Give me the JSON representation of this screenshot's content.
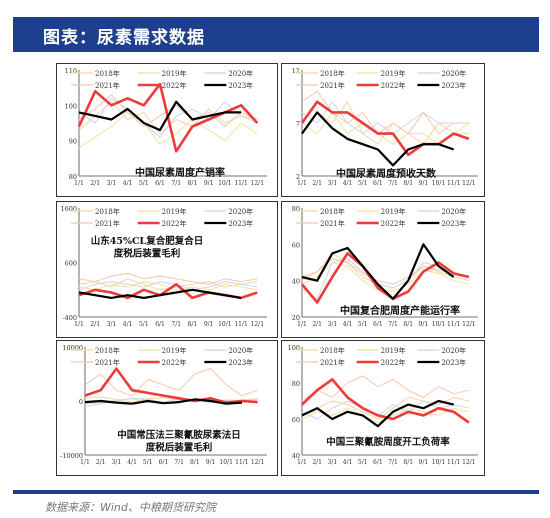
{
  "header": {
    "title": "图表：尿素需求数据"
  },
  "footer": {
    "source": "数据来源：Wind、中粮期货研究院"
  },
  "series_styles": [
    {
      "name": "2018年",
      "color": "#f7d5a3",
      "width": 1
    },
    {
      "name": "2019年",
      "color": "#f2e1a0",
      "width": 1
    },
    {
      "name": "2020年",
      "color": "#c7d7ec",
      "width": 1
    },
    {
      "name": "2021年",
      "color": "#f7c6b0",
      "width": 1
    },
    {
      "name": "2022年",
      "color": "#ef3a3a",
      "width": 2.6
    },
    {
      "name": "2023年",
      "color": "#000000",
      "width": 2.2
    }
  ],
  "chart_data": [
    {
      "type": "line",
      "title": "中国尿素周度产销率",
      "x": [
        "1/1",
        "2/1",
        "3/1",
        "4/1",
        "5/1",
        "6/1",
        "7/1",
        "8/1",
        "9/1",
        "10/1",
        "11/1",
        "12/1"
      ],
      "yticks": [
        "110",
        "100",
        "90",
        "80"
      ],
      "ylim": [
        80,
        110
      ],
      "series": [
        {
          "name": "2018年",
          "values": [
            93,
            97,
            101,
            96,
            98,
            92,
            96,
            94,
            99,
            95,
            97,
            96
          ]
        },
        {
          "name": "2019年",
          "values": [
            88,
            91,
            94,
            98,
            95,
            89,
            92,
            96,
            93,
            90,
            95,
            92
          ]
        },
        {
          "name": "2020年",
          "values": [
            98,
            95,
            102,
            99,
            95,
            91,
            97,
            99,
            96,
            101,
            97,
            95
          ]
        },
        {
          "name": "2021年",
          "values": [
            96,
            99,
            103,
            98,
            94,
            97,
            100,
            96,
            98,
            94,
            98,
            96
          ]
        },
        {
          "name": "2022年",
          "values": [
            94,
            104,
            100,
            102,
            100,
            106,
            87,
            94,
            96,
            98,
            100,
            95
          ]
        },
        {
          "name": "2023年",
          "values": [
            98,
            97,
            96,
            99,
            95,
            93,
            101,
            96,
            97,
            98,
            98,
            null
          ]
        }
      ]
    },
    {
      "type": "line",
      "title": "中国尿素周度预收天数",
      "x": [
        "1/1",
        "2/1",
        "3/1",
        "4/1",
        "5/1",
        "6/1",
        "7/1",
        "8/1",
        "9/1",
        "10/1",
        "11/1",
        "12/1"
      ],
      "yticks": [
        "12",
        "7",
        "2"
      ],
      "ylim": [
        2,
        12
      ],
      "series": [
        {
          "name": "2018年",
          "values": [
            6,
            8,
            7,
            9,
            6,
            5,
            7,
            6,
            5,
            7,
            6,
            6
          ]
        },
        {
          "name": "2019年",
          "values": [
            7,
            6,
            8,
            6,
            7,
            6,
            5,
            6,
            6,
            5,
            6,
            7
          ]
        },
        {
          "name": "2020年",
          "values": [
            8,
            7,
            9,
            7,
            6,
            7,
            6,
            7,
            8,
            7,
            7,
            7
          ]
        },
        {
          "name": "2021年",
          "values": [
            9,
            10,
            8,
            7,
            8,
            6,
            7,
            6,
            8,
            6,
            7,
            7
          ]
        },
        {
          "name": "2022年",
          "values": [
            7,
            9,
            8,
            8,
            7,
            6,
            6,
            4,
            5,
            5,
            6,
            5.5
          ]
        },
        {
          "name": "2023年",
          "values": [
            6,
            8,
            6.5,
            5.5,
            5,
            4.5,
            3,
            4.5,
            5,
            5,
            4.5,
            null
          ]
        }
      ]
    },
    {
      "type": "line",
      "title": "山东45%CL复合肥复合日度税后装置毛利",
      "x": [
        "1/1",
        "2/1",
        "3/1",
        "4/1",
        "5/1",
        "6/1",
        "7/1",
        "8/1",
        "9/1",
        "10/1",
        "11/1",
        "12/1"
      ],
      "yticks": [
        "1600",
        "600",
        "-400"
      ],
      "ylim": [
        -400,
        1600
      ],
      "series": [
        {
          "name": "2018年",
          "values": [
            200,
            250,
            150,
            300,
            200,
            100,
            150,
            200,
            250,
            150,
            200,
            250
          ]
        },
        {
          "name": "2019年",
          "values": [
            150,
            100,
            200,
            150,
            250,
            200,
            100,
            150,
            100,
            200,
            150,
            100
          ]
        },
        {
          "name": "2020年",
          "values": [
            100,
            200,
            250,
            200,
            150,
            250,
            200,
            100,
            150,
            250,
            200,
            150
          ]
        },
        {
          "name": "2021年",
          "values": [
            300,
            250,
            350,
            400,
            300,
            350,
            300,
            250,
            200,
            300,
            250,
            300
          ]
        },
        {
          "name": "2022年",
          "values": [
            0,
            100,
            50,
            -50,
            100,
            0,
            200,
            -50,
            50,
            0,
            -50,
            50
          ]
        },
        {
          "name": "2023年",
          "values": [
            50,
            0,
            -50,
            0,
            -50,
            0,
            50,
            100,
            50,
            0,
            -50,
            null
          ]
        }
      ]
    },
    {
      "type": "line",
      "title": "中国复合肥周度产能运行率",
      "x": [
        "1/1",
        "2/1",
        "3/1",
        "4/1",
        "5/1",
        "6/1",
        "7/1",
        "8/1",
        "9/1",
        "10/1",
        "11/1",
        "12/1"
      ],
      "yticks": [
        "80",
        "60",
        "40",
        "20"
      ],
      "ylim": [
        20,
        80
      ],
      "series": [
        {
          "name": "2018年",
          "values": [
            40,
            45,
            55,
            50,
            42,
            38,
            36,
            40,
            48,
            45,
            42,
            40
          ]
        },
        {
          "name": "2019年",
          "values": [
            38,
            42,
            50,
            48,
            40,
            35,
            34,
            38,
            46,
            44,
            40,
            38
          ]
        },
        {
          "name": "2020年",
          "values": [
            36,
            30,
            50,
            52,
            45,
            38,
            36,
            40,
            50,
            48,
            44,
            42
          ]
        },
        {
          "name": "2021年",
          "values": [
            42,
            45,
            52,
            50,
            44,
            40,
            38,
            42,
            48,
            46,
            44,
            42
          ]
        },
        {
          "name": "2022年",
          "values": [
            38,
            28,
            42,
            55,
            48,
            36,
            30,
            34,
            45,
            50,
            44,
            42
          ]
        },
        {
          "name": "2023年",
          "values": [
            42,
            40,
            55,
            58,
            48,
            38,
            30,
            40,
            60,
            48,
            42,
            null
          ]
        }
      ]
    },
    {
      "type": "line",
      "title": "中国常压法三聚氰胺尿素法日度税后装置毛利",
      "x": [
        "1/1",
        "2/1",
        "3/1",
        "4/1",
        "5/1",
        "6/1",
        "7/1",
        "8/1",
        "9/1",
        "10/1",
        "11/1",
        "12/1"
      ],
      "yticks": [
        "10000",
        "0",
        "-10000"
      ],
      "ylim": [
        -10000,
        10000
      ],
      "series": [
        {
          "name": "2018年",
          "values": [
            500,
            800,
            300,
            -200,
            400,
            600,
            200,
            100,
            300,
            0,
            200,
            400
          ]
        },
        {
          "name": "2019年",
          "values": [
            -500,
            -300,
            200,
            400,
            -200,
            -400,
            0,
            300,
            -100,
            200,
            100,
            -200
          ]
        },
        {
          "name": "2020年",
          "values": [
            -1000,
            -500,
            0,
            500,
            300,
            -200,
            400,
            200,
            -300,
            100,
            0,
            300
          ]
        },
        {
          "name": "2021年",
          "values": [
            3000,
            5000,
            2000,
            1000,
            4000,
            3000,
            2000,
            5000,
            6000,
            3000,
            1000,
            2000
          ]
        },
        {
          "name": "2022年",
          "values": [
            1000,
            2000,
            6000,
            2000,
            1500,
            1000,
            500,
            0,
            500,
            -300,
            0,
            -200
          ]
        },
        {
          "name": "2023年",
          "values": [
            -200,
            0,
            -300,
            -500,
            0,
            -400,
            -200,
            300,
            0,
            -500,
            -300,
            null
          ]
        }
      ]
    },
    {
      "type": "line",
      "title": "中国三聚氰胺周度开工负荷率",
      "x": [
        "1/1",
        "2/1",
        "3/1",
        "4/1",
        "5/1",
        "6/1",
        "7/1",
        "8/1",
        "9/1",
        "10/1",
        "11/1",
        "12/1"
      ],
      "yticks": [
        "100",
        "80",
        "60",
        "40"
      ],
      "ylim": [
        40,
        100
      ],
      "series": [
        {
          "name": "2018年",
          "values": [
            62,
            66,
            70,
            68,
            64,
            60,
            66,
            72,
            70,
            68,
            72,
            70
          ]
        },
        {
          "name": "2019年",
          "values": [
            60,
            64,
            62,
            66,
            62,
            58,
            62,
            66,
            64,
            62,
            66,
            64
          ]
        },
        {
          "name": "2020年",
          "values": [
            64,
            60,
            66,
            70,
            66,
            62,
            68,
            64,
            70,
            66,
            68,
            66
          ]
        },
        {
          "name": "2021年",
          "values": [
            70,
            76,
            72,
            80,
            84,
            78,
            82,
            76,
            72,
            78,
            74,
            76
          ]
        },
        {
          "name": "2022年",
          "values": [
            68,
            76,
            82,
            72,
            66,
            62,
            60,
            64,
            62,
            66,
            64,
            58
          ]
        },
        {
          "name": "2023年",
          "values": [
            62,
            66,
            60,
            64,
            62,
            56,
            64,
            68,
            66,
            70,
            68,
            null
          ]
        }
      ]
    }
  ]
}
